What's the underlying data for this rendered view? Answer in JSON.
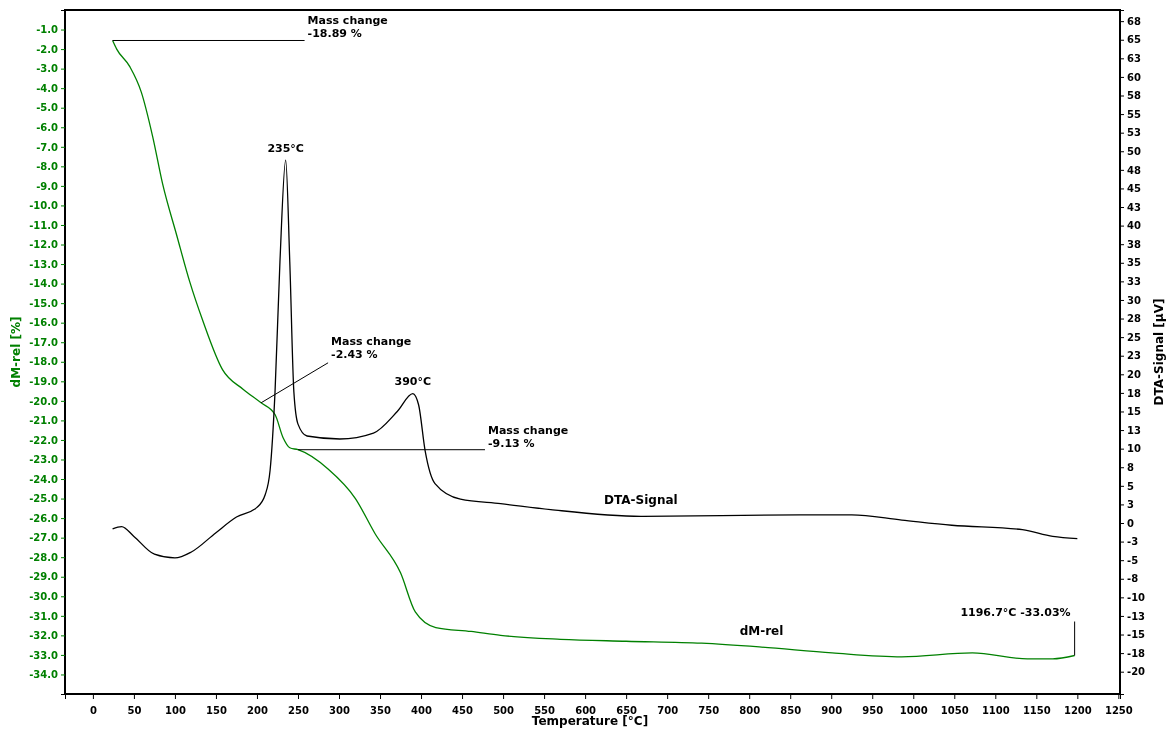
{
  "chart_data": {
    "type": "line",
    "xlabel": "Temperature  [°C]",
    "ylabel": "dM-rel  [%]",
    "y2label": "DTA-Signal [µV]",
    "xlim": [
      -34,
      1252
    ],
    "xticks": [
      0,
      50,
      100,
      150,
      200,
      250,
      300,
      350,
      400,
      450,
      500,
      550,
      600,
      650,
      700,
      750,
      800,
      850,
      900,
      950,
      1000,
      1050,
      1100,
      1150,
      1200,
      1250
    ],
    "ylim": [
      -35,
      0
    ],
    "yticks": [
      {
        "value": -1,
        "label": "-1.0"
      },
      {
        "value": -2,
        "label": "-2.0"
      },
      {
        "value": -3,
        "label": "-3.0"
      },
      {
        "value": -4,
        "label": "-4.0"
      },
      {
        "value": -5,
        "label": "-5.0"
      },
      {
        "value": -6,
        "label": "-6.0"
      },
      {
        "value": -7,
        "label": "-7.0"
      },
      {
        "value": -8,
        "label": "-8.0"
      },
      {
        "value": -9,
        "label": "-9.0"
      },
      {
        "value": -10,
        "label": "-10.0"
      },
      {
        "value": -11,
        "label": "-11.0"
      },
      {
        "value": -12,
        "label": "-12.0"
      },
      {
        "value": -13,
        "label": "-13.0"
      },
      {
        "value": -14,
        "label": "-14.0"
      },
      {
        "value": -15,
        "label": "-15.0"
      },
      {
        "value": -16,
        "label": "-16.0"
      },
      {
        "value": -17,
        "label": "-17.0"
      },
      {
        "value": -18,
        "label": "-18.0"
      },
      {
        "value": -19,
        "label": "-19.0"
      },
      {
        "value": -20,
        "label": "-20.0"
      },
      {
        "value": -21,
        "label": "-21.0"
      },
      {
        "value": -22,
        "label": "-22.0"
      },
      {
        "value": -23,
        "label": "-23.0"
      },
      {
        "value": -24,
        "label": "-24.0"
      },
      {
        "value": -25,
        "label": "-25.0"
      },
      {
        "value": -26,
        "label": "-26.0"
      },
      {
        "value": -27,
        "label": "-27.0"
      },
      {
        "value": -28,
        "label": "-28.0"
      },
      {
        "value": -29,
        "label": "-29.0"
      },
      {
        "value": -30,
        "label": "-30.0"
      },
      {
        "value": -31,
        "label": "-31.0"
      },
      {
        "value": -32,
        "label": "-32.0"
      },
      {
        "value": -33,
        "label": "-33.0"
      },
      {
        "value": -34,
        "label": "-34.0"
      }
    ],
    "y2lim": [
      -23,
      69
    ],
    "y2ticks": [
      {
        "value": 67.5,
        "label": "68"
      },
      65,
      {
        "value": 62.5,
        "label": "63"
      },
      60,
      {
        "value": 57.5,
        "label": "58"
      },
      55,
      {
        "value": 52.5,
        "label": "53"
      },
      50,
      {
        "value": 47.5,
        "label": "48"
      },
      45,
      {
        "value": 42.5,
        "label": "43"
      },
      40,
      {
        "value": 37.5,
        "label": "38"
      },
      35,
      {
        "value": 32.5,
        "label": "33"
      },
      30,
      {
        "value": 27.5,
        "label": "28"
      },
      25,
      {
        "value": 22.5,
        "label": "23"
      },
      20,
      {
        "value": 17.5,
        "label": "18"
      },
      15,
      {
        "value": 12.5,
        "label": "13"
      },
      10,
      {
        "value": 7.5,
        "label": "8"
      },
      5,
      {
        "value": 2.5,
        "label": "3"
      },
      0,
      {
        "value": -2.5,
        "label": "-3"
      },
      -5,
      {
        "value": -7.5,
        "label": "-8"
      },
      -10,
      {
        "value": -12.5,
        "label": "-13"
      },
      -15,
      {
        "value": -17.5,
        "label": "-18"
      },
      -20
    ],
    "legend": false,
    "grid": false,
    "series": [
      {
        "name": "dM-rel",
        "color": "#008000",
        "x": [
          24,
          29,
          45,
          59,
          73,
          85,
          102,
          118,
          134,
          158,
          183,
          205,
          222,
          232,
          240,
          250,
          287,
          320,
          344,
          375,
          393,
          418,
          461,
          497,
          570,
          650,
          742,
          815,
          901,
          986,
          1072,
          1139,
          1170,
          1196.7
        ],
        "values": [
          -1.56,
          -2.0,
          -2.9,
          -4.2,
          -6.5,
          -8.9,
          -11.5,
          -13.9,
          -15.9,
          -18.4,
          -19.4,
          -20.1,
          -20.7,
          -21.9,
          -22.4,
          -22.5,
          -23.5,
          -25.0,
          -26.8,
          -28.8,
          -30.8,
          -31.6,
          -31.8,
          -32.0,
          -32.2,
          -32.3,
          -32.4,
          -32.6,
          -32.9,
          -33.1,
          -32.9,
          -33.2,
          -33.2,
          -33.03
        ]
      },
      {
        "name": "DTA-Signal",
        "color": "#000000",
        "axis": "y2",
        "x": [
          24,
          35,
          50,
          75,
          100,
          120,
          150,
          175,
          200,
          210,
          216,
          222,
          228,
          235,
          240,
          245,
          250,
          261,
          301,
          342,
          371,
          390,
          397,
          405,
          417,
          448,
          497,
          558,
          668,
          864,
          925,
          986,
          1047,
          1133,
          1170,
          1200
        ],
        "values": [
          -0.8,
          -0.5,
          -1.8,
          -4.2,
          -4.7,
          -3.9,
          -1.3,
          0.8,
          2.1,
          3.8,
          7.1,
          17.6,
          35.1,
          48.8,
          35.1,
          17.6,
          13.3,
          11.7,
          11.3,
          12.1,
          15.0,
          17.4,
          15.9,
          9.7,
          5.3,
          3.2,
          2.6,
          1.8,
          0.9,
          1.1,
          1.1,
          0.4,
          -0.3,
          -0.9,
          -1.8,
          -2.1
        ]
      }
    ],
    "annotations": [
      {
        "text": "Mass change\n-18.89 %",
        "x": 24,
        "y": -1.56
      },
      {
        "text": "Mass change\n-2.43 %",
        "x": 205,
        "y": -20.1
      },
      {
        "text": "Mass change\n-9.13 %",
        "x": 250,
        "y": -22.5
      },
      {
        "text": "235°C",
        "x": 235,
        "y": -7.7
      },
      {
        "text": "390°C",
        "x": 390,
        "y": -19.6
      },
      {
        "text": "1196.7°C  -33.03%",
        "x": 1196.7,
        "y": -33.03
      }
    ]
  }
}
